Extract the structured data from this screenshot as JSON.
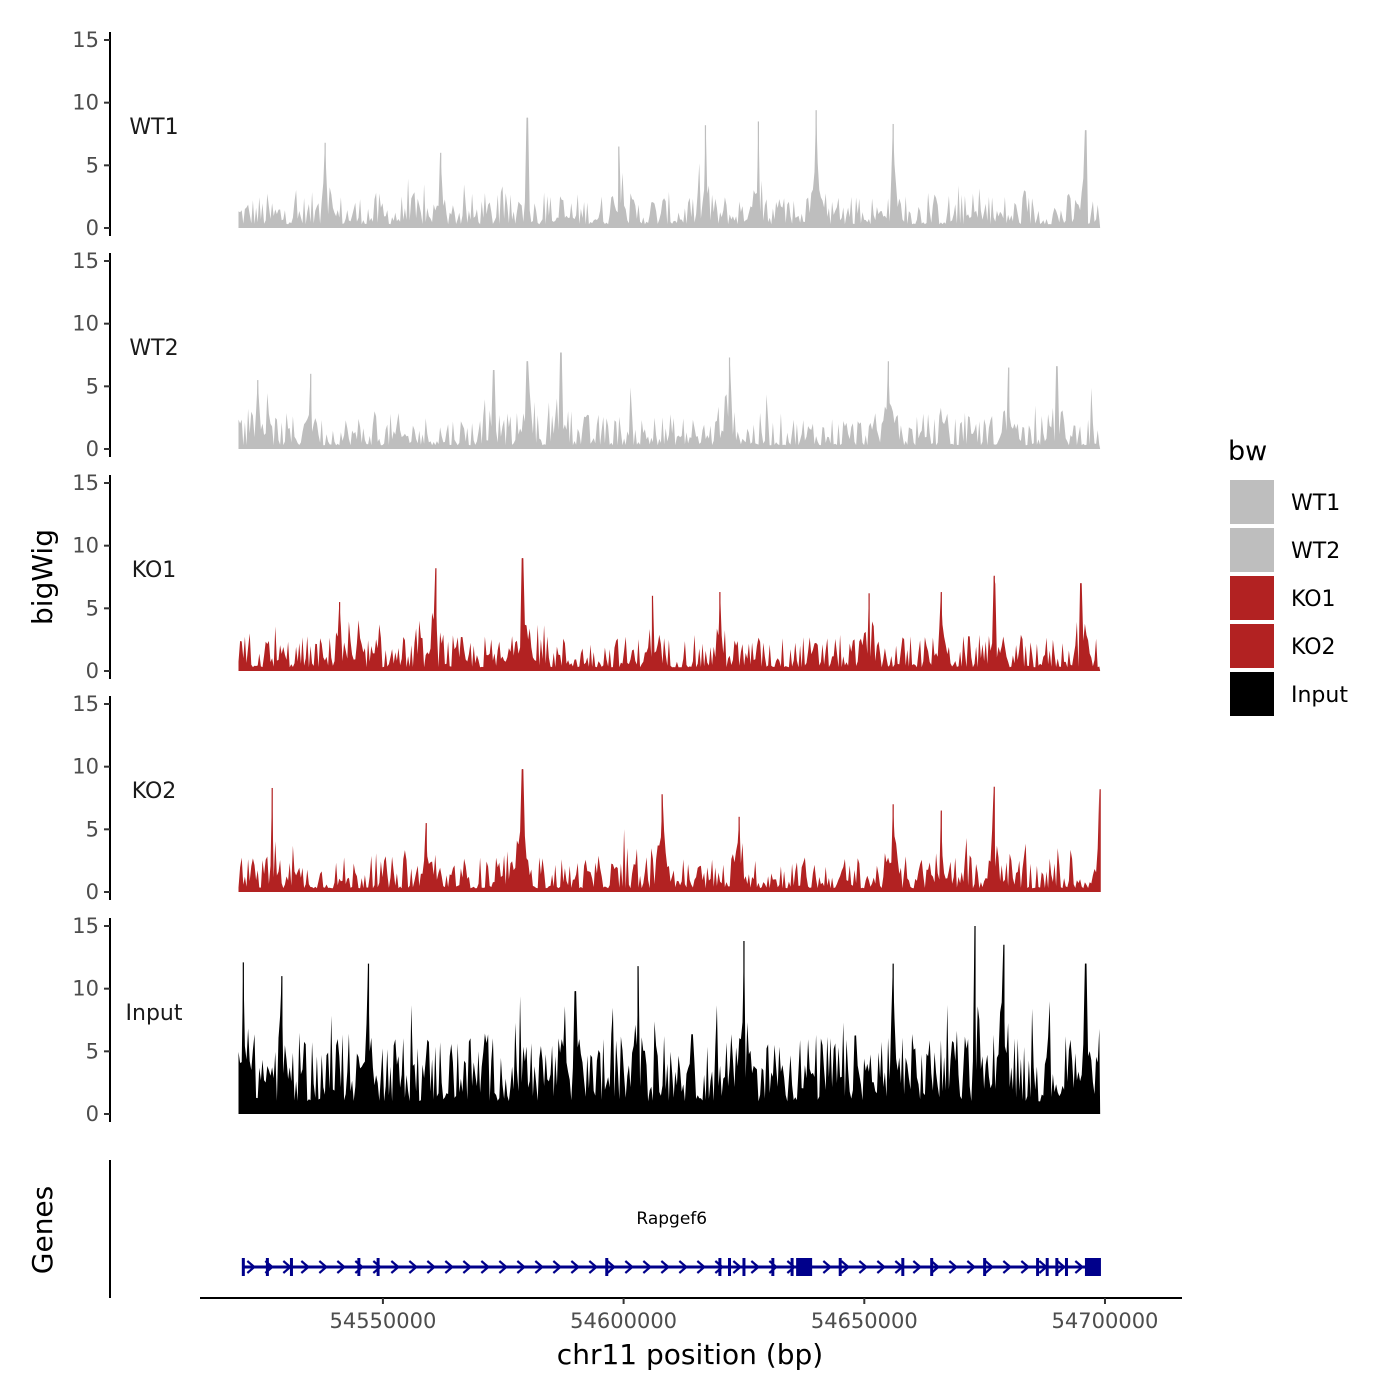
{
  "chart_data": {
    "type": "area",
    "title": "",
    "xlabel": "chr11 position (bp)",
    "ylabel": "bigWig",
    "genes_label": "Genes",
    "x_range": [
      54512000,
      54716000
    ],
    "data_range": [
      54520000,
      54699000
    ],
    "x_ticks": [
      54550000,
      54600000,
      54650000,
      54700000
    ],
    "x_tick_labels": [
      "54550000",
      "54600000",
      "54650000",
      "54700000"
    ],
    "ylim": [
      0,
      15
    ],
    "y_ticks": [
      0,
      5,
      10,
      15
    ],
    "y_tick_labels": [
      "0",
      "5",
      "10",
      "15"
    ],
    "legend": {
      "title": "bw",
      "entries": [
        {
          "label": "WT1",
          "color": "#bebebe"
        },
        {
          "label": "WT2",
          "color": "#bebebe"
        },
        {
          "label": "KO1",
          "color": "#b22222"
        },
        {
          "label": "KO2",
          "color": "#b22222"
        },
        {
          "label": "Input",
          "color": "#000000"
        }
      ]
    },
    "series": [
      {
        "name": "WT1",
        "color": "#bebebe",
        "peaks": [
          {
            "x": 54538000,
            "y": 6.8
          },
          {
            "x": 54562000,
            "y": 6.0
          },
          {
            "x": 54580000,
            "y": 8.8
          },
          {
            "x": 54599000,
            "y": 6.5
          },
          {
            "x": 54617000,
            "y": 8.2
          },
          {
            "x": 54628000,
            "y": 8.5
          },
          {
            "x": 54640000,
            "y": 9.4
          },
          {
            "x": 54656000,
            "y": 8.3
          },
          {
            "x": 54696000,
            "y": 7.8
          }
        ]
      },
      {
        "name": "WT2",
        "color": "#bebebe",
        "peaks": [
          {
            "x": 54524000,
            "y": 5.5
          },
          {
            "x": 54535000,
            "y": 6.0
          },
          {
            "x": 54573000,
            "y": 6.3
          },
          {
            "x": 54580000,
            "y": 7.0
          },
          {
            "x": 54587000,
            "y": 7.7
          },
          {
            "x": 54622000,
            "y": 7.3
          },
          {
            "x": 54655000,
            "y": 7.0
          },
          {
            "x": 54680000,
            "y": 6.5
          },
          {
            "x": 54690000,
            "y": 6.6
          }
        ]
      },
      {
        "name": "KO1",
        "color": "#b22222",
        "peaks": [
          {
            "x": 54541000,
            "y": 5.5
          },
          {
            "x": 54561000,
            "y": 8.2
          },
          {
            "x": 54579000,
            "y": 9.0
          },
          {
            "x": 54606000,
            "y": 6.0
          },
          {
            "x": 54620000,
            "y": 6.3
          },
          {
            "x": 54651000,
            "y": 6.2
          },
          {
            "x": 54666000,
            "y": 6.3
          },
          {
            "x": 54677000,
            "y": 7.6
          },
          {
            "x": 54695000,
            "y": 7.0
          }
        ]
      },
      {
        "name": "KO2",
        "color": "#b22222",
        "peaks": [
          {
            "x": 54527000,
            "y": 8.3
          },
          {
            "x": 54559000,
            "y": 5.5
          },
          {
            "x": 54579000,
            "y": 9.8
          },
          {
            "x": 54608000,
            "y": 7.8
          },
          {
            "x": 54624000,
            "y": 6.0
          },
          {
            "x": 54656000,
            "y": 7.0
          },
          {
            "x": 54666000,
            "y": 6.5
          },
          {
            "x": 54677000,
            "y": 8.4
          },
          {
            "x": 54699000,
            "y": 8.2
          }
        ]
      },
      {
        "name": "Input",
        "color": "#000000",
        "peaks": [
          {
            "x": 54521000,
            "y": 12.1
          },
          {
            "x": 54529000,
            "y": 11.0
          },
          {
            "x": 54547000,
            "y": 12.0
          },
          {
            "x": 54590000,
            "y": 9.8
          },
          {
            "x": 54603000,
            "y": 11.8
          },
          {
            "x": 54625000,
            "y": 13.8
          },
          {
            "x": 54656000,
            "y": 12.0
          },
          {
            "x": 54673000,
            "y": 15.0
          },
          {
            "x": 54679000,
            "y": 13.5
          },
          {
            "x": 54696000,
            "y": 12.0
          }
        ]
      }
    ],
    "gene_track": {
      "gene": "Rapgef6",
      "color": "#00008b",
      "strand": "+",
      "start": 54521000,
      "end": 54699000,
      "exons": [
        54521000,
        54526000,
        54531000,
        54545000,
        54549000,
        54596500,
        54620000,
        54622000,
        54625000,
        54631000,
        54635000,
        54637500,
        54645000,
        54658000,
        54664000,
        54675000,
        54686000,
        54688000,
        54690000,
        54692000,
        54697500
      ],
      "large_exons": [
        54637500,
        54697500
      ]
    }
  }
}
